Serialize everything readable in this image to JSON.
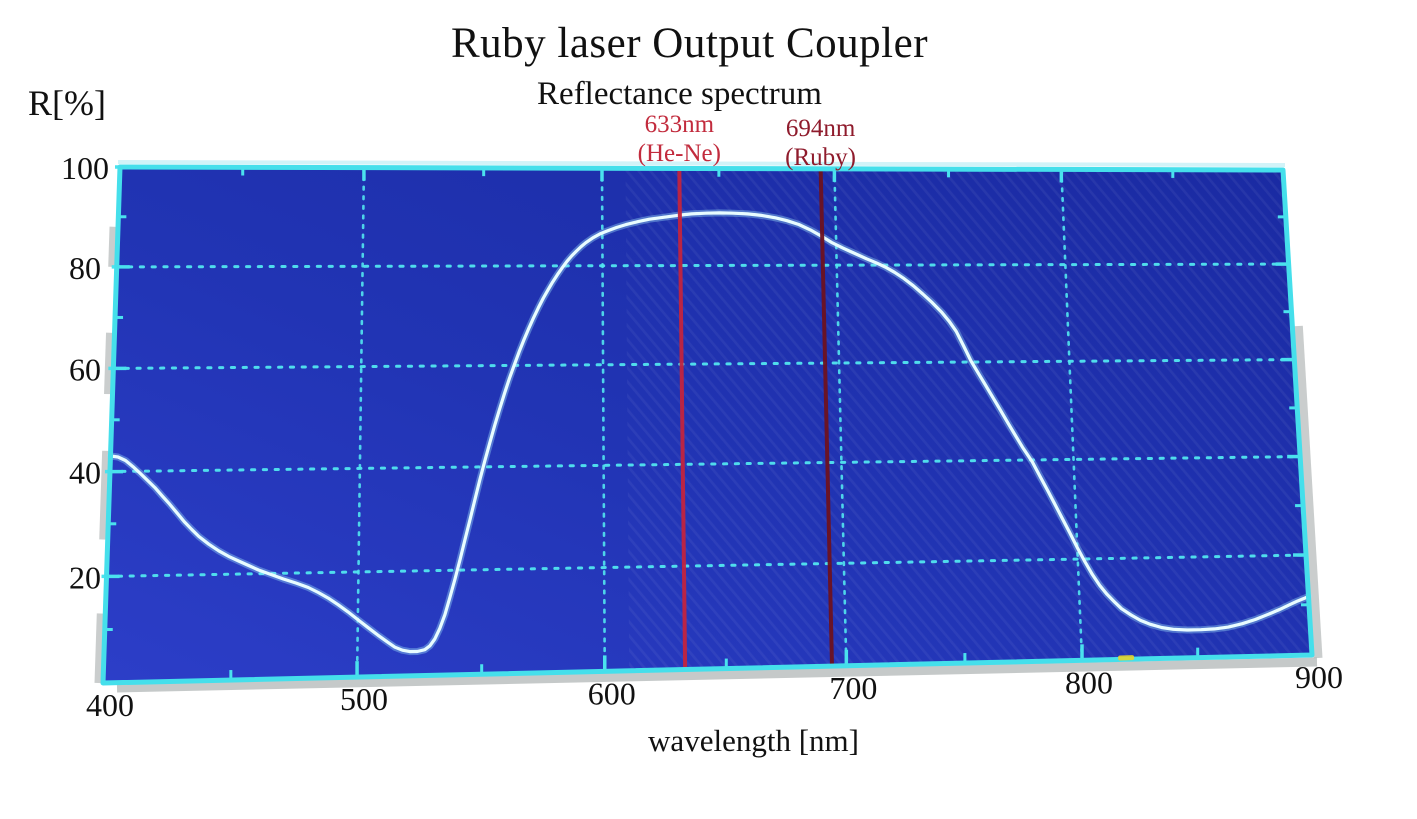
{
  "window": {
    "background": "#ffffff"
  },
  "chart_data": {
    "type": "line",
    "title": "Ruby laser Output Coupler",
    "subtitle": "Reflectance spectrum",
    "ylabel": "R[%]",
    "xlabel": "wavelength [nm]",
    "xlim": [
      400,
      900
    ],
    "ylim": [
      0,
      100
    ],
    "grid": {
      "style": "dotted",
      "x_values": [
        500,
        600,
        700,
        800
      ],
      "y_values": [
        20,
        40,
        60,
        80
      ]
    },
    "x_ticks_major": [
      500,
      600,
      700,
      800
    ],
    "x_ticks_minor": [
      450,
      550,
      650,
      750,
      850
    ],
    "y_ticks_major": [
      20,
      40,
      60,
      80,
      100
    ],
    "y_ticks_minor": [
      10,
      30,
      50,
      70,
      90
    ],
    "x_tick_labels": [
      {
        "value": 400,
        "label": "400"
      },
      {
        "value": 500,
        "label": "500"
      },
      {
        "value": 600,
        "label": "600"
      },
      {
        "value": 700,
        "label": "700"
      },
      {
        "value": 800,
        "label": "800"
      },
      {
        "value": 900,
        "label": "900"
      }
    ],
    "y_tick_labels": [
      {
        "value": 100,
        "label": "100"
      },
      {
        "value": 80,
        "label": "80"
      },
      {
        "value": 60,
        "label": "60"
      },
      {
        "value": 40,
        "label": "40"
      },
      {
        "value": 20,
        "label": "20"
      }
    ],
    "annotations": [
      {
        "line1": "633nm",
        "line2": "(He-Ne)",
        "wavelength_nm": 633,
        "line_color": "#c2243f",
        "text_color": "#c22b3d"
      },
      {
        "line1": "694nm",
        "line2": "(Ruby)",
        "wavelength_nm": 694,
        "line_color": "#6d1220",
        "text_color": "#8f1b2c"
      }
    ],
    "series": [
      {
        "name": "reflectance",
        "color": "#e8fcff",
        "points": [
          [
            400,
            43
          ],
          [
            403,
            42.8
          ],
          [
            406,
            42.1
          ],
          [
            409,
            40.9
          ],
          [
            412,
            39.6
          ],
          [
            415,
            38.2
          ],
          [
            418,
            36.8
          ],
          [
            421,
            35.2
          ],
          [
            424,
            33.6
          ],
          [
            427,
            31.9
          ],
          [
            430,
            30.2
          ],
          [
            433,
            28.7
          ],
          [
            436,
            27.3
          ],
          [
            440,
            25.8
          ],
          [
            444,
            24.5
          ],
          [
            448,
            23.4
          ],
          [
            452,
            22.5
          ],
          [
            456,
            21.6
          ],
          [
            460,
            20.7
          ],
          [
            465,
            19.8
          ],
          [
            470,
            18.9
          ],
          [
            475,
            18.1
          ],
          [
            480,
            17.2
          ],
          [
            484,
            16.2
          ],
          [
            488,
            15.1
          ],
          [
            492,
            13.8
          ],
          [
            496,
            12.4
          ],
          [
            500,
            10.9
          ],
          [
            504,
            9.4
          ],
          [
            508,
            7.9
          ],
          [
            512,
            6.5
          ],
          [
            515,
            5.5
          ],
          [
            518,
            4.9
          ],
          [
            521,
            4.6
          ],
          [
            524,
            4.6
          ],
          [
            527,
            4.9
          ],
          [
            529,
            5.6
          ],
          [
            531,
            6.9
          ],
          [
            533,
            8.9
          ],
          [
            535,
            11.5
          ],
          [
            537,
            14.8
          ],
          [
            539,
            18.3
          ],
          [
            541,
            22
          ],
          [
            543,
            25.9
          ],
          [
            545,
            29.8
          ],
          [
            547,
            33.7
          ],
          [
            549,
            37.6
          ],
          [
            551,
            41.3
          ],
          [
            553,
            44.8
          ],
          [
            555,
            48.2
          ],
          [
            557,
            51.4
          ],
          [
            559,
            54.5
          ],
          [
            561,
            57.4
          ],
          [
            563,
            60.1
          ],
          [
            565,
            62.7
          ],
          [
            567,
            65.1
          ],
          [
            569,
            67.4
          ],
          [
            571,
            69.5
          ],
          [
            573,
            71.5
          ],
          [
            575,
            73.4
          ],
          [
            577,
            75.1
          ],
          [
            579,
            76.7
          ],
          [
            581,
            78.2
          ],
          [
            583,
            79.6
          ],
          [
            585,
            80.9
          ],
          [
            587,
            82
          ],
          [
            589,
            83
          ],
          [
            591,
            83.9
          ],
          [
            593,
            84.7
          ],
          [
            596,
            85.7
          ],
          [
            599,
            86.5
          ],
          [
            602,
            87.1
          ],
          [
            606,
            87.8
          ],
          [
            610,
            88.4
          ],
          [
            615,
            89
          ],
          [
            620,
            89.5
          ],
          [
            626,
            89.9
          ],
          [
            632,
            90.3
          ],
          [
            638,
            90.6
          ],
          [
            644,
            90.75
          ],
          [
            650,
            90.8
          ],
          [
            656,
            90.75
          ],
          [
            662,
            90.6
          ],
          [
            668,
            90.3
          ],
          [
            674,
            89.8
          ],
          [
            679,
            89.2
          ],
          [
            684,
            88.4
          ],
          [
            689,
            87.3
          ],
          [
            694,
            85.9
          ],
          [
            698,
            84.7
          ],
          [
            703,
            83.5
          ],
          [
            708,
            82.4
          ],
          [
            713,
            81.3
          ],
          [
            717,
            80.5
          ],
          [
            721,
            79.6
          ],
          [
            725,
            78.5
          ],
          [
            729,
            77.2
          ],
          [
            733,
            75.7
          ],
          [
            737,
            74
          ],
          [
            741,
            72.2
          ],
          [
            745,
            70.2
          ],
          [
            748,
            68.4
          ],
          [
            751,
            66.3
          ],
          [
            754,
            63.3
          ],
          [
            757,
            60.2
          ],
          [
            760,
            57.7
          ],
          [
            763,
            55.2
          ],
          [
            766,
            52.7
          ],
          [
            769,
            50.2
          ],
          [
            772,
            47.6
          ],
          [
            775,
            45.1
          ],
          [
            778,
            42.6
          ],
          [
            782,
            39.6
          ],
          [
            785,
            36.8
          ],
          [
            788,
            34
          ],
          [
            791,
            31.1
          ],
          [
            794,
            28.2
          ],
          [
            797,
            25.3
          ],
          [
            800,
            22.3
          ],
          [
            803,
            19.5
          ],
          [
            806,
            16.9
          ],
          [
            809,
            14.7
          ],
          [
            812,
            12.9
          ],
          [
            815,
            11.4
          ],
          [
            818,
            10
          ],
          [
            822,
            8.7
          ],
          [
            826,
            7.6
          ],
          [
            830,
            6.8
          ],
          [
            835,
            6.1
          ],
          [
            840,
            5.7
          ],
          [
            846,
            5.5
          ],
          [
            852,
            5.5
          ],
          [
            858,
            5.6
          ],
          [
            864,
            5.9
          ],
          [
            870,
            6.5
          ],
          [
            876,
            7.3
          ],
          [
            882,
            8.3
          ],
          [
            887,
            9.2
          ],
          [
            891,
            10
          ],
          [
            895,
            10.8
          ],
          [
            898,
            11.3
          ],
          [
            900,
            11.7
          ]
        ]
      }
    ],
    "artifacts": [
      {
        "type": "yellow-dash",
        "wavelength_nm": 819
      }
    ],
    "colors": {
      "plot_bg": "#2134b4",
      "plot_bg_light": "#2c3ec8",
      "plot_bg_dark": "#1a2aa2",
      "frame": "#45dfeb",
      "frame_highlight": "#cdf2f8",
      "grid_dots": "#52e6f0",
      "tick": "#4ae2ee",
      "curve": "#e8fcff",
      "curve_glow": "#9fe2fa",
      "text": "#111111",
      "shadow": "#a0a6a6",
      "artifact_yellow": "#e3d42c"
    }
  }
}
